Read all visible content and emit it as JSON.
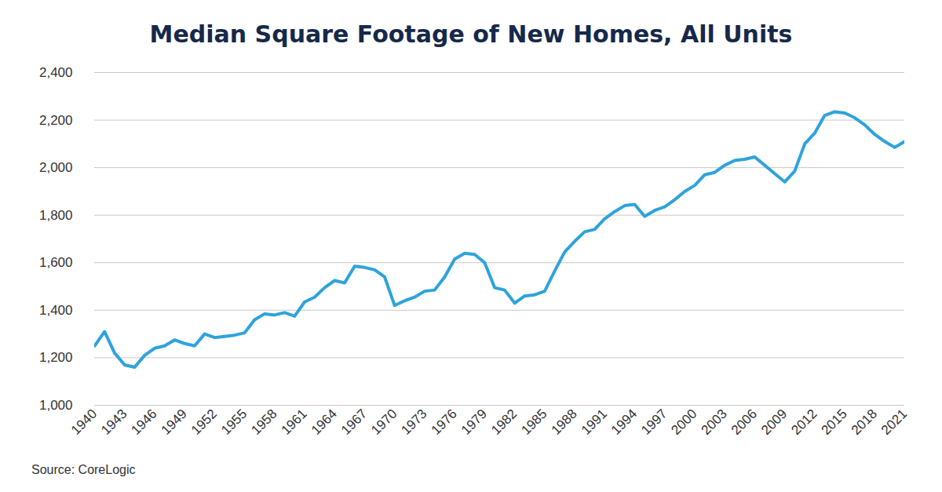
{
  "chart_data": {
    "type": "line",
    "title": "Median Square Footage of New Homes, All Units",
    "caption": "Source: CoreLogic",
    "color": "#2ea3dc",
    "grid": true,
    "x": [
      1940,
      1941,
      1942,
      1943,
      1944,
      1945,
      1946,
      1947,
      1948,
      1949,
      1950,
      1951,
      1952,
      1953,
      1954,
      1955,
      1956,
      1957,
      1958,
      1959,
      1960,
      1961,
      1962,
      1963,
      1964,
      1965,
      1966,
      1967,
      1968,
      1969,
      1970,
      1971,
      1972,
      1973,
      1974,
      1975,
      1976,
      1977,
      1978,
      1979,
      1980,
      1981,
      1982,
      1983,
      1984,
      1985,
      1986,
      1987,
      1988,
      1989,
      1990,
      1991,
      1992,
      1993,
      1994,
      1995,
      1996,
      1997,
      1998,
      1999,
      2000,
      2001,
      2002,
      2003,
      2004,
      2005,
      2006,
      2007,
      2008,
      2009,
      2010,
      2011,
      2012,
      2013,
      2014,
      2015,
      2016,
      2017,
      2018,
      2019,
      2020,
      2021
    ],
    "values": [
      1250,
      1310,
      1220,
      1170,
      1160,
      1210,
      1240,
      1250,
      1275,
      1260,
      1250,
      1300,
      1285,
      1290,
      1295,
      1305,
      1360,
      1385,
      1380,
      1390,
      1375,
      1435,
      1455,
      1495,
      1525,
      1515,
      1585,
      1580,
      1570,
      1540,
      1420,
      1440,
      1455,
      1480,
      1485,
      1540,
      1615,
      1640,
      1635,
      1600,
      1495,
      1485,
      1430,
      1460,
      1465,
      1480,
      1565,
      1645,
      1690,
      1730,
      1740,
      1785,
      1815,
      1840,
      1845,
      1795,
      1820,
      1835,
      1865,
      1900,
      1925,
      1970,
      1980,
      2010,
      2030,
      2035,
      2045,
      2010,
      1975,
      1940,
      1985,
      2100,
      2145,
      2220,
      2235,
      2230,
      2210,
      2180,
      2140,
      2110,
      2085,
      2110
    ],
    "xlim": [
      1940,
      2021
    ],
    "xticks": [
      1940,
      1943,
      1946,
      1949,
      1952,
      1955,
      1958,
      1961,
      1964,
      1967,
      1970,
      1973,
      1976,
      1979,
      1982,
      1985,
      1988,
      1991,
      1994,
      1997,
      2000,
      2003,
      2006,
      2009,
      2012,
      2015,
      2018,
      2021
    ],
    "ylim": [
      1000,
      2400
    ],
    "yticks": [
      {
        "value": 1000,
        "label": "1,000"
      },
      {
        "value": 1200,
        "label": "1,200"
      },
      {
        "value": 1400,
        "label": "1,400"
      },
      {
        "value": 1600,
        "label": "1,600"
      },
      {
        "value": 1800,
        "label": "1,800"
      },
      {
        "value": 2000,
        "label": "2,000"
      },
      {
        "value": 2200,
        "label": "2,200"
      },
      {
        "value": 2400,
        "label": "2,400"
      }
    ]
  }
}
